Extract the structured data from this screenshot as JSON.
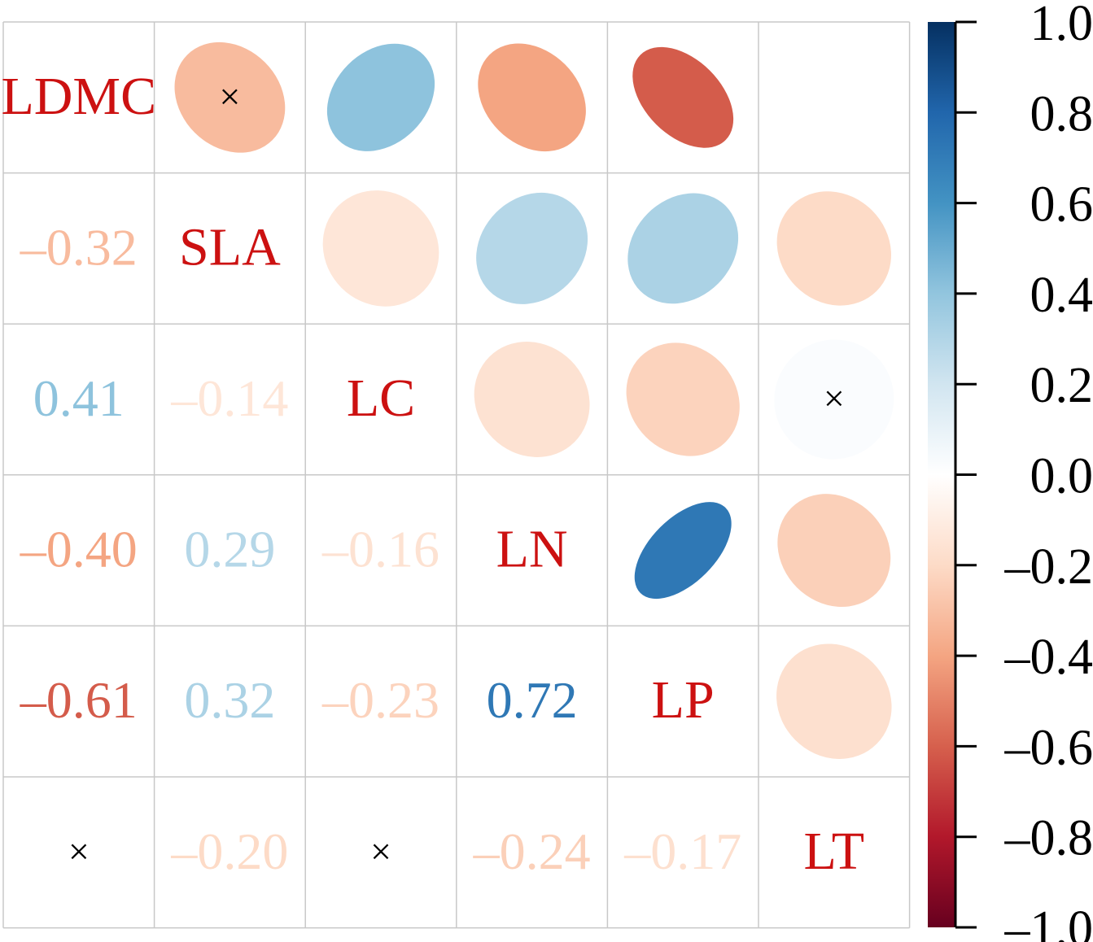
{
  "chart_data": {
    "type": "heatmap",
    "variables": [
      "LDMC",
      "SLA",
      "LC",
      "LN",
      "LP",
      "LT"
    ],
    "matrix": [
      [
        1.0,
        -0.32,
        0.41,
        -0.4,
        -0.61,
        null
      ],
      [
        -0.32,
        1.0,
        -0.14,
        0.29,
        0.32,
        -0.2
      ],
      [
        0.41,
        -0.14,
        1.0,
        -0.16,
        -0.23,
        null
      ],
      [
        -0.4,
        0.29,
        -0.16,
        1.0,
        0.72,
        -0.24
      ],
      [
        -0.61,
        0.32,
        -0.23,
        0.72,
        1.0,
        -0.17
      ],
      [
        null,
        -0.2,
        null,
        -0.24,
        -0.17,
        1.0
      ]
    ],
    "lower_labels": [
      [
        "",
        "",
        "",
        "",
        "",
        ""
      ],
      [
        "–0.32",
        "",
        "",
        "",
        "",
        ""
      ],
      [
        "0.41",
        "–0.14",
        "",
        "",
        "",
        ""
      ],
      [
        "–0.40",
        "0.29",
        "–0.16",
        "",
        "",
        ""
      ],
      [
        "–0.61",
        "0.32",
        "–0.23",
        "0.72",
        "",
        ""
      ],
      [
        "×",
        "–0.20",
        "×",
        "–0.24",
        "–0.17",
        ""
      ]
    ],
    "upper_marks": [
      [
        0,
        1,
        5,
        "×"
      ],
      [
        2,
        5,
        0.02,
        "×"
      ]
    ],
    "upper_values": [
      [
        0,
        1,
        -0.32
      ],
      [
        0,
        2,
        0.41
      ],
      [
        0,
        3,
        -0.4
      ],
      [
        0,
        4,
        -0.61
      ],
      [
        1,
        2,
        -0.14
      ],
      [
        1,
        3,
        0.29
      ],
      [
        1,
        4,
        0.32
      ],
      [
        1,
        5,
        -0.2
      ],
      [
        2,
        3,
        -0.16
      ],
      [
        2,
        4,
        -0.23
      ],
      [
        2,
        5,
        0.02
      ],
      [
        3,
        4,
        0.72
      ],
      [
        3,
        5,
        -0.24
      ],
      [
        4,
        5,
        -0.17
      ]
    ],
    "lower_display": "numbers",
    "upper_display": "ellipses",
    "diagonal_label_color": "#cc1111",
    "insignificant_mark": "×",
    "colorbar": {
      "range": [
        -1.0,
        1.0
      ],
      "ticks": [
        "1.0",
        "0.8",
        "0.6",
        "0.4",
        "0.2",
        "0.0",
        "–0.2",
        "–0.4",
        "–0.6",
        "–0.8",
        "–1.0"
      ],
      "tick_values": [
        1.0,
        0.8,
        0.6,
        0.4,
        0.2,
        0.0,
        -0.2,
        -0.4,
        -0.6,
        -0.8,
        -1.0
      ],
      "colors": [
        "#67001f",
        "#b2182b",
        "#d6604d",
        "#f4a582",
        "#fddbc7",
        "#ffffff",
        "#d1e5f0",
        "#92c5de",
        "#4393c3",
        "#2166ac",
        "#053061"
      ]
    }
  }
}
